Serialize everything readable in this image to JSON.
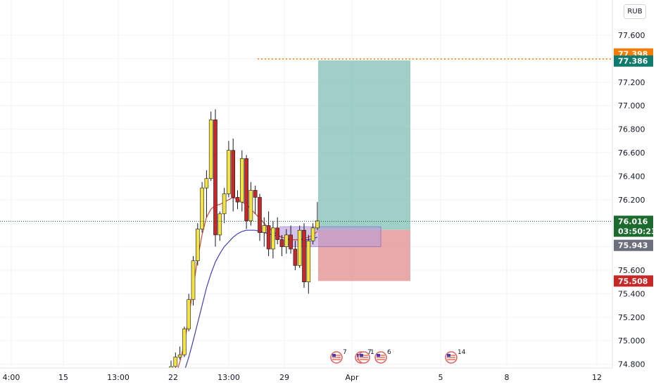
{
  "currency_button": "RUB",
  "colors": {
    "up": "#f5e33f",
    "down": "#c62828",
    "wick": "#131722",
    "ma_fast": "#d84a3a",
    "ma_slow": "#3f3fb8",
    "target_zone": "#7fbfb3",
    "stop_zone": "#e39494",
    "entry_zone": "#b79cd9",
    "last_price_bg": "#1b6b2e",
    "target_price_bg": "#0f7b6c",
    "stop_price_bg": "#c62828",
    "high_price_bg": "#f57c00",
    "entry_price_bg": "#6b6f7d",
    "grid": "#f0f3fa"
  },
  "price_badges": [
    {
      "id": "high",
      "label": "77.398",
      "value": 77.398,
      "color_key": "high_price_bg"
    },
    {
      "id": "target",
      "label": "77.386",
      "value": 77.386,
      "color_key": "target_price_bg"
    },
    {
      "id": "last",
      "label": "76.016",
      "sub": "03:50:23",
      "value": 76.016,
      "color_key": "last_price_bg"
    },
    {
      "id": "entry",
      "label": "75.943",
      "value": 75.943,
      "color_key": "entry_price_bg"
    },
    {
      "id": "stop",
      "label": "75.508",
      "value": 75.508,
      "color_key": "stop_price_bg"
    }
  ],
  "event_markers": [
    {
      "x": 478,
      "badge": "7",
      "icon": "us-flag-icon"
    },
    {
      "x": 513,
      "badge": "7",
      "icon": "us-flag-icon"
    },
    {
      "x": 517,
      "badge": "1",
      "icon": "us-flag-icon"
    },
    {
      "x": 541,
      "badge": "6",
      "icon": "us-flag-icon"
    },
    {
      "x": 641,
      "badge": "14",
      "icon": "us-flag-icon"
    }
  ],
  "chart_data": {
    "type": "candlestick",
    "title": "",
    "y_axis": {
      "min": 74.8,
      "max": 77.6,
      "ticks": [
        77.6,
        77.4,
        77.2,
        77.0,
        76.8,
        76.6,
        76.4,
        76.2,
        76.0,
        75.8,
        75.6,
        75.4,
        75.2,
        75.0,
        74.8
      ],
      "tick_labels": [
        "77.600",
        "77.400",
        "77.200",
        "77.000",
        "76.800",
        "76.600",
        "76.400",
        "76.200",
        "76.000",
        "75.800",
        "75.600",
        "75.400",
        "75.200",
        "75.000",
        "74.800"
      ]
    },
    "x_axis": {
      "tick_labels": [
        "4:00",
        "15",
        "13:00",
        "22",
        "13:00",
        "29",
        "Apr",
        "5",
        "8",
        "12"
      ]
    },
    "candles": [
      {
        "o": 74.75,
        "h": 74.83,
        "l": 74.72,
        "c": 74.78
      },
      {
        "o": 74.78,
        "h": 74.9,
        "l": 74.76,
        "c": 74.86
      },
      {
        "o": 74.86,
        "h": 74.95,
        "l": 74.84,
        "c": 74.88
      },
      {
        "o": 74.88,
        "h": 75.12,
        "l": 74.86,
        "c": 75.1
      },
      {
        "o": 75.1,
        "h": 75.4,
        "l": 75.08,
        "c": 75.35
      },
      {
        "o": 75.35,
        "h": 75.72,
        "l": 75.3,
        "c": 75.68
      },
      {
        "o": 75.68,
        "h": 76.0,
        "l": 75.64,
        "c": 75.95
      },
      {
        "o": 75.95,
        "h": 76.35,
        "l": 75.92,
        "c": 76.3
      },
      {
        "o": 76.3,
        "h": 76.45,
        "l": 76.05,
        "c": 76.38
      },
      {
        "o": 76.38,
        "h": 76.95,
        "l": 76.36,
        "c": 76.88
      },
      {
        "o": 76.88,
        "h": 76.97,
        "l": 75.8,
        "c": 75.9
      },
      {
        "o": 75.9,
        "h": 76.1,
        "l": 75.85,
        "c": 76.08
      },
      {
        "o": 76.08,
        "h": 76.3,
        "l": 76.0,
        "c": 76.25
      },
      {
        "o": 76.25,
        "h": 76.7,
        "l": 76.22,
        "c": 76.62
      },
      {
        "o": 76.62,
        "h": 76.72,
        "l": 76.1,
        "c": 76.22
      },
      {
        "o": 76.22,
        "h": 76.28,
        "l": 76.12,
        "c": 76.18
      },
      {
        "o": 76.18,
        "h": 76.62,
        "l": 76.1,
        "c": 76.55
      },
      {
        "o": 76.55,
        "h": 76.58,
        "l": 75.95,
        "c": 76.02
      },
      {
        "o": 76.02,
        "h": 76.35,
        "l": 75.98,
        "c": 76.28
      },
      {
        "o": 76.28,
        "h": 76.32,
        "l": 76.08,
        "c": 76.22
      },
      {
        "o": 76.22,
        "h": 76.25,
        "l": 75.85,
        "c": 75.92
      },
      {
        "o": 75.92,
        "h": 76.05,
        "l": 75.8,
        "c": 75.98
      },
      {
        "o": 75.98,
        "h": 76.1,
        "l": 75.72,
        "c": 75.78
      },
      {
        "o": 75.78,
        "h": 76.02,
        "l": 75.7,
        "c": 75.96
      },
      {
        "o": 75.96,
        "h": 76.05,
        "l": 75.82,
        "c": 75.86
      },
      {
        "o": 75.86,
        "h": 75.9,
        "l": 75.72,
        "c": 75.8
      },
      {
        "o": 75.8,
        "h": 75.95,
        "l": 75.74,
        "c": 75.9
      },
      {
        "o": 75.9,
        "h": 75.98,
        "l": 75.74,
        "c": 75.78
      },
      {
        "o": 75.78,
        "h": 75.85,
        "l": 75.6,
        "c": 75.64
      },
      {
        "o": 75.64,
        "h": 75.98,
        "l": 75.62,
        "c": 75.94
      },
      {
        "o": 75.94,
        "h": 76.0,
        "l": 75.45,
        "c": 75.5
      },
      {
        "o": 75.5,
        "h": 75.9,
        "l": 75.4,
        "c": 75.85
      },
      {
        "o": 75.85,
        "h": 76.0,
        "l": 75.82,
        "c": 75.96
      },
      {
        "o": 75.96,
        "h": 76.18,
        "l": 75.94,
        "c": 76.02
      }
    ],
    "ma_fast": [
      74.6,
      74.7,
      74.82,
      74.98,
      75.2,
      75.45,
      75.7,
      75.9,
      76.05,
      76.12,
      76.15,
      76.16,
      76.18,
      76.2,
      76.22,
      76.2,
      76.18,
      76.16,
      76.12,
      76.08,
      76.04,
      76.0,
      75.96,
      75.93,
      75.9,
      75.88,
      75.87,
      75.86,
      75.86,
      75.86,
      75.87,
      75.88,
      75.9,
      75.93
    ],
    "ma_slow": [
      74.5,
      74.56,
      74.64,
      74.74,
      74.86,
      75.0,
      75.15,
      75.3,
      75.45,
      75.57,
      75.67,
      75.74,
      75.8,
      75.84,
      75.88,
      75.91,
      75.93,
      75.94,
      75.94,
      75.94,
      75.93,
      75.92,
      75.91,
      75.9,
      75.89,
      75.88,
      75.87,
      75.86,
      75.86,
      75.86,
      75.86,
      75.86,
      75.87,
      75.88
    ],
    "position": {
      "entry": 75.943,
      "target": 77.386,
      "stop": 75.508,
      "entry_range": [
        75.8,
        75.97
      ]
    },
    "last_price": 76.016,
    "high_marker": 77.398
  }
}
